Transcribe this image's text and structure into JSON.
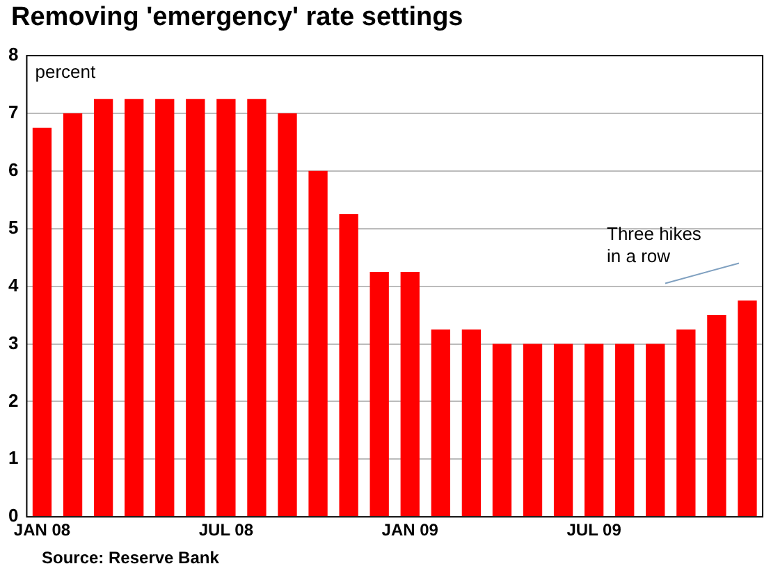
{
  "chart_data": {
    "type": "bar",
    "title": "Removing 'emergency' rate settings",
    "ylabel": "percent",
    "categories": [
      "JAN 08",
      null,
      null,
      null,
      null,
      null,
      "JUL 08",
      null,
      null,
      null,
      null,
      null,
      "JAN 09",
      null,
      null,
      null,
      null,
      null,
      "JUL 09",
      null,
      null,
      null,
      null,
      null
    ],
    "values": [
      6.75,
      7.0,
      7.25,
      7.25,
      7.25,
      7.25,
      7.25,
      7.25,
      7.0,
      6.0,
      5.25,
      4.25,
      4.25,
      3.25,
      3.25,
      3.0,
      3.0,
      3.0,
      3.0,
      3.0,
      3.0,
      3.25,
      3.5,
      3.75
    ],
    "color": "#ff0000",
    "ylim": [
      0,
      8
    ],
    "yticks": [
      0,
      1,
      2,
      3,
      4,
      5,
      6,
      7,
      8
    ],
    "grid": "y",
    "annotations": [
      "Three hikes\nin a row",
      "Source: Reserve Bank"
    ]
  }
}
